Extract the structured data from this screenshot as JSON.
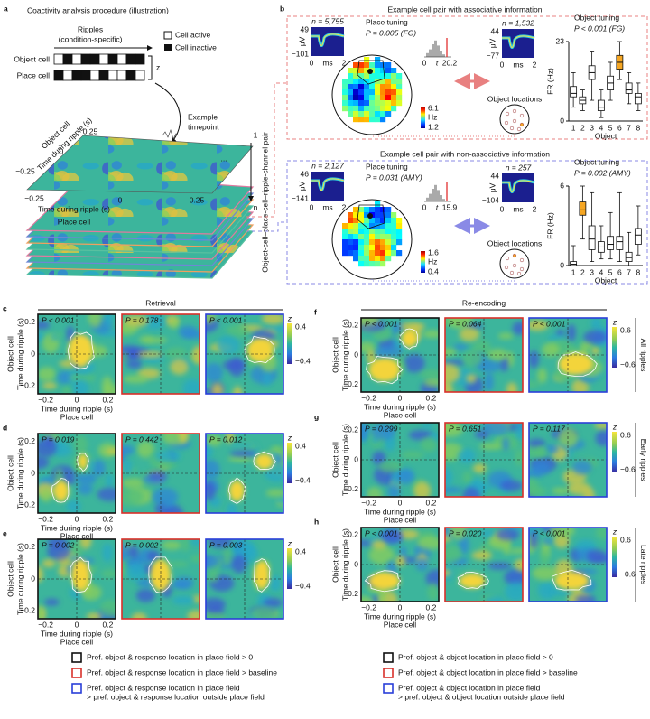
{
  "panel_a": {
    "label": "a",
    "title": "Coactivity analysis procedure (illustration)",
    "ripples": "Ripples",
    "ripples_sub": "(condition-specific)",
    "object_cell": "Object cell",
    "place_cell": "Place cell",
    "legend_active": "Cell active",
    "legend_inactive": "Cell inactive",
    "z": "z",
    "example_timepoint": [
      "Example",
      "timepoint"
    ],
    "y_axis": [
      "Object cell",
      "Time during ripple (s)"
    ],
    "y_ticks": [
      "0.25",
      "0",
      "−0.25"
    ],
    "x_axis": [
      "Time during ripple (s)",
      "Place cell"
    ],
    "x_ticks": [
      "−0.25",
      "0",
      "0.25"
    ],
    "stack_labels": [
      "1",
      "...",
      "n"
    ],
    "stack_axis": "Object-cell–place-cell–ripple-channel pair"
  },
  "panel_b": {
    "label": "b",
    "pairs": [
      {
        "title": "Example cell pair with associative information",
        "waveform_object": {
          "n": "n = 5,755",
          "ymax": "49",
          "unit": "μV",
          "ymin": "−101",
          "x0": "0",
          "xunit": "ms",
          "x1": "2"
        },
        "place_tuning": "Place tuning",
        "place_p": "P = 0.005 (FG)",
        "rate_bar": {
          "max": "6.1",
          "unit": "Hz",
          "min": "1.2"
        },
        "hist": {
          "x0": "0",
          "xlabel": "t",
          "x1": "20.2"
        },
        "waveform_place": {
          "n": "n = 1,532",
          "ymax": "44",
          "unit": "μV",
          "ymin": "−77",
          "x0": "0",
          "xunit": "ms",
          "x1": "2"
        },
        "object_locations": "Object locations",
        "object_tuning": "Object tuning",
        "object_p": "P < 0.001 (FG)",
        "object_chart": {
          "type": "box",
          "ylabel": "FR (Hz)",
          "xlabel": "Object",
          "categories": [
            1,
            2,
            3,
            4,
            5,
            6,
            7,
            8
          ],
          "ylim": [
            0,
            23
          ],
          "yticks": [
            0,
            23
          ],
          "box_color": "#ffffff",
          "highlight_category": 6,
          "highlight_color": "#f5a623",
          "boxes": [
            {
              "min": 4,
              "q1": 7,
              "median": 8,
              "q3": 10,
              "max": 14
            },
            {
              "min": 3,
              "q1": 5,
              "median": 6,
              "q3": 7,
              "max": 9
            },
            {
              "min": 6,
              "q1": 12,
              "median": 14,
              "q3": 16,
              "max": 20
            },
            {
              "min": 1,
              "q1": 3,
              "median": 4,
              "q3": 6,
              "max": 9
            },
            {
              "min": 6,
              "q1": 9,
              "median": 11,
              "q3": 13,
              "max": 17
            },
            {
              "min": 12,
              "q1": 15,
              "median": 17,
              "q3": 19,
              "max": 23
            },
            {
              "min": 5,
              "q1": 8,
              "median": 9,
              "q3": 11,
              "max": 14
            },
            {
              "min": 3,
              "q1": 5,
              "median": 7,
              "q3": 8,
              "max": 11
            }
          ]
        }
      },
      {
        "title": "Example cell pair with non-associative information",
        "waveform_object": {
          "n": "n = 2,127",
          "ymax": "46",
          "unit": "μV",
          "ymin": "−141",
          "x0": "0",
          "xunit": "ms",
          "x1": "2"
        },
        "place_tuning": "Place tuning",
        "place_p": "P = 0.031 (AMY)",
        "rate_bar": {
          "max": "1.6",
          "unit": "Hz",
          "min": "0.4"
        },
        "hist": {
          "x0": "0",
          "xlabel": "t",
          "x1": "15.9"
        },
        "waveform_place": {
          "n": "n = 257",
          "ymax": "44",
          "unit": "μV",
          "ymin": "−104",
          "x0": "0",
          "xunit": "ms",
          "x1": "2"
        },
        "object_locations": "Object locations",
        "object_tuning": "Object tuning",
        "object_p": "P = 0.002 (AMY)",
        "object_chart": {
          "type": "box",
          "ylabel": "FR (Hz)",
          "xlabel": "Object",
          "categories": [
            1,
            2,
            3,
            4,
            5,
            6,
            7,
            8
          ],
          "ylim": [
            0,
            6
          ],
          "yticks": [
            0,
            6
          ],
          "box_color": "#ffffff",
          "highlight_category": 2,
          "highlight_color": "#f5a623",
          "boxes": [
            {
              "min": 0,
              "q1": 0,
              "median": 0.1,
              "q3": 0.3,
              "max": 1.5
            },
            {
              "min": 2,
              "q1": 3.8,
              "median": 4.2,
              "q3": 4.8,
              "max": 6
            },
            {
              "min": 0.3,
              "q1": 1.2,
              "median": 2,
              "q3": 3,
              "max": 5.5
            },
            {
              "min": 0.5,
              "q1": 1,
              "median": 1.4,
              "q3": 1.8,
              "max": 3
            },
            {
              "min": 0.5,
              "q1": 1.2,
              "median": 1.6,
              "q3": 2.2,
              "max": 4
            },
            {
              "min": 0.3,
              "q1": 1.2,
              "median": 1.8,
              "q3": 2.2,
              "max": 5.5
            },
            {
              "min": 0,
              "q1": 0.3,
              "median": 0.6,
              "q3": 1,
              "max": 2.5
            },
            {
              "min": 0.8,
              "q1": 1.6,
              "median": 2.3,
              "q3": 2.8,
              "max": 4.5
            }
          ]
        }
      }
    ]
  },
  "heatmap_axes": {
    "y_axis": [
      "Object cell",
      "Time during ripple (s)"
    ],
    "x_axis": [
      "Time during ripple (s)",
      "Place cell"
    ],
    "y_ticks": [
      "0.2",
      "0",
      "−0.2"
    ],
    "x_ticks": [
      "−0.2",
      "0",
      "0.2"
    ],
    "colorbar_label": "z",
    "retrieval_colorbar": [
      "0.4",
      "−0.4"
    ],
    "reencoding_colorbar": [
      "0.6",
      "−0.6"
    ]
  },
  "retrieval": {
    "header": "Retrieval",
    "panels": [
      {
        "label": "c",
        "p_values": [
          "P < 0.001",
          "P = 0.178",
          "P < 0.001"
        ]
      },
      {
        "label": "d",
        "p_values": [
          "P = 0.019",
          "P = 0.442",
          "P = 0.012"
        ]
      },
      {
        "label": "e",
        "p_values": [
          "P = 0.002",
          "P = 0.002",
          "P = 0.003"
        ]
      }
    ]
  },
  "reencoding": {
    "header": "Re-encoding",
    "panels": [
      {
        "label": "f",
        "row_label": "All ripples",
        "p_values": [
          "P < 0.001",
          "P = 0.064",
          "P < 0.001"
        ]
      },
      {
        "label": "g",
        "row_label": "Early ripples",
        "p_values": [
          "P = 0.299",
          "P = 0.651",
          "P = 0.117"
        ]
      },
      {
        "label": "h",
        "row_label": "Late ripples",
        "p_values": [
          "P < 0.001",
          "P = 0.020",
          "P < 0.001"
        ]
      }
    ]
  },
  "legend": {
    "left": [
      [
        "Pref. object & response location in place field > 0"
      ],
      [
        "Pref. object & response location in place field > baseline"
      ],
      [
        "Pref. object & response location in place field",
        "> pref. object & response location outside place field"
      ]
    ],
    "right": [
      [
        "Pref. object & object location in place field > 0"
      ],
      [
        "Pref. object & object location in place field > baseline"
      ],
      [
        "Pref. object & object location in place field",
        "> pref. object & object location outside place field"
      ]
    ]
  }
}
